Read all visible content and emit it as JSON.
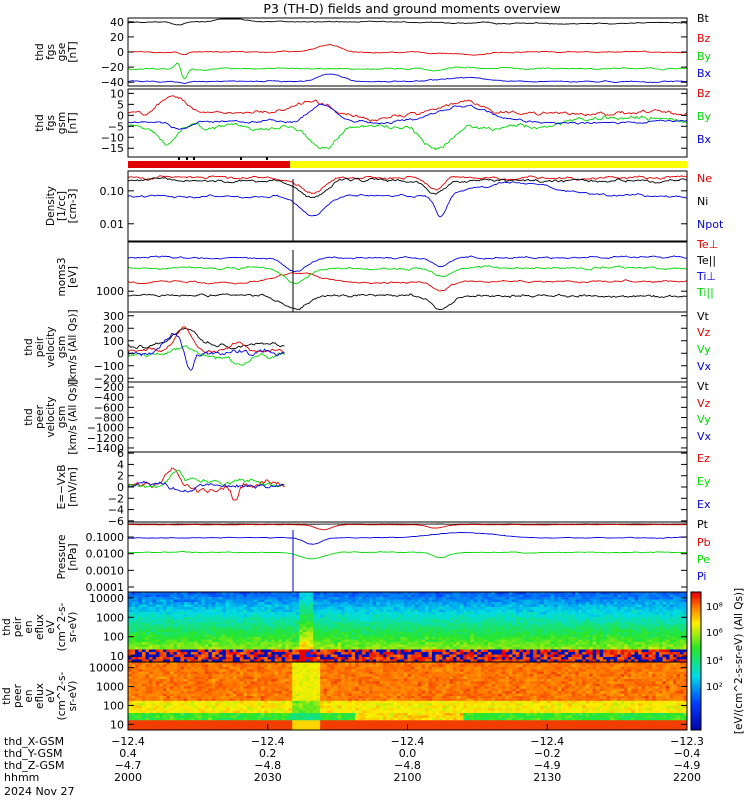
{
  "title": "P3 (TH-D) fields and ground moments overview",
  "colors": {
    "black": "#000000",
    "red": "#e00000",
    "green": "#00d800",
    "blue": "#0000e0",
    "yellow": "#ffff00"
  },
  "chart_data": [
    {
      "id": "fgs",
      "type": "line",
      "ylabel": [
        "thd",
        "fgs",
        "gse",
        "[nT]"
      ],
      "ylim": [
        -45,
        45
      ],
      "ticks": [
        {
          "v": 40,
          "t": "40"
        },
        {
          "v": 20,
          "t": "20"
        },
        {
          "v": 0,
          "t": "0"
        },
        {
          "v": -20,
          "t": "−20"
        },
        {
          "v": -40,
          "t": "−40"
        }
      ],
      "series": [
        {
          "name": "Bt",
          "color": "black",
          "base": 39,
          "amp": 1.5,
          "events": [
            [
              0.09,
              -4,
              0.015
            ],
            [
              0.18,
              5,
              0.04
            ],
            [
              0.3,
              1,
              0.2
            ],
            [
              0.72,
              -1,
              0.2
            ]
          ]
        },
        {
          "name": "Bz",
          "color": "red",
          "base": 0,
          "amp": 1.5,
          "events": [
            [
              0.1,
              -3,
              0.01
            ],
            [
              0.36,
              10,
              0.03
            ],
            [
              0.55,
              -2,
              0.05
            ],
            [
              0.62,
              -4,
              0.03
            ]
          ]
        },
        {
          "name": "By",
          "color": "green",
          "base": -22,
          "amp": 2.0,
          "events": [
            [
              0.09,
              10,
              0.008
            ],
            [
              0.1,
              -15,
              0.008
            ],
            [
              0.55,
              -3,
              0.02
            ],
            [
              0.6,
              3,
              0.03
            ]
          ]
        },
        {
          "name": "Bx",
          "color": "blue",
          "base": -39,
          "amp": 1.5,
          "events": [
            [
              0.1,
              -3,
              0.01
            ],
            [
              0.36,
              10,
              0.03
            ],
            [
              0.6,
              5,
              0.05
            ]
          ]
        }
      ]
    },
    {
      "id": "fgs_gsm",
      "type": "line",
      "ylabel": [
        "thd",
        "fgs",
        "gsm",
        "[nT]"
      ],
      "ylim": [
        -19,
        12
      ],
      "ticks": [
        {
          "v": 10,
          "t": "10"
        },
        {
          "v": 5,
          "t": "5"
        },
        {
          "v": 0,
          "t": "0"
        },
        {
          "v": -5,
          "t": "−5"
        },
        {
          "v": -10,
          "t": "−10"
        },
        {
          "v": -15,
          "t": "−15"
        }
      ],
      "series": [
        {
          "name": "Bz",
          "color": "red",
          "base": 1,
          "amp": 1.6,
          "events": [
            [
              0.08,
              8,
              0.03
            ],
            [
              0.33,
              6,
              0.04
            ],
            [
              0.45,
              -3,
              0.05
            ],
            [
              0.6,
              5,
              0.05
            ]
          ]
        },
        {
          "name": "By",
          "color": "green",
          "base": -5,
          "amp": 2.0,
          "events": [
            [
              0.07,
              -8,
              0.02
            ],
            [
              0.35,
              -10,
              0.03
            ],
            [
              0.55,
              -11,
              0.03
            ],
            [
              0.9,
              4,
              0.1
            ]
          ]
        },
        {
          "name": "Bx",
          "color": "blue",
          "base": -3,
          "amp": 1.2,
          "events": [
            [
              0.1,
              -3,
              0.02
            ],
            [
              0.35,
              8,
              0.03
            ],
            [
              0.6,
              7,
              0.06
            ]
          ]
        }
      ]
    },
    {
      "id": "density",
      "type": "line",
      "log": true,
      "ylabel": [
        "Density",
        "[1/cc]",
        "[cm-3]"
      ],
      "ylim": [
        0.003,
        0.4
      ],
      "ticks": [
        {
          "v": 0.1,
          "t": "0.10"
        },
        {
          "v": 0.01,
          "t": "0.01"
        }
      ],
      "series": [
        {
          "name": "Ne",
          "color": "red",
          "base": 0.25,
          "amp": 0.08,
          "events": [
            [
              0.33,
              -0.4,
              0.03
            ],
            [
              0.55,
              -0.4,
              0.02
            ]
          ]
        },
        {
          "name": "Ni",
          "color": "black",
          "base": 0.2,
          "amp": 0.09,
          "events": [
            [
              0.33,
              -0.5,
              0.03
            ],
            [
              0.55,
              -0.4,
              0.02
            ]
          ]
        },
        {
          "name": "Npot",
          "color": "blue",
          "base": 0.07,
          "amp": 0.06,
          "events": [
            [
              0.33,
              -0.6,
              0.03
            ],
            [
              0.56,
              -0.7,
              0.015
            ],
            [
              0.7,
              0.4,
              0.1
            ]
          ]
        }
      ]
    },
    {
      "id": "temp",
      "type": "line",
      "log": true,
      "ylabel": [
        "moms3",
        "[eV]"
      ],
      "ylim": [
        350,
        12000
      ],
      "ticks": [
        {
          "v": 1000,
          "t": "1000"
        }
      ],
      "series": [
        {
          "name": "Te⊥",
          "color": "red",
          "base": 1600,
          "amp": 0.04,
          "events": [
            [
              0.3,
              0.2,
              0.05
            ],
            [
              0.56,
              -0.2,
              0.02
            ]
          ]
        },
        {
          "name": "Te||",
          "color": "black",
          "base": 800,
          "amp": 0.06,
          "events": [
            [
              0.3,
              -0.3,
              0.03
            ],
            [
              0.56,
              -0.3,
              0.02
            ]
          ]
        },
        {
          "name": "Ti⊥",
          "color": "blue",
          "base": 5500,
          "amp": 0.04,
          "events": [
            [
              0.3,
              -0.3,
              0.03
            ],
            [
              0.56,
              -0.2,
              0.02
            ]
          ]
        },
        {
          "name": "Ti||",
          "color": "green",
          "base": 3200,
          "amp": 0.05,
          "events": [
            [
              0.3,
              -0.3,
              0.03
            ],
            [
              0.56,
              -0.2,
              0.02
            ]
          ]
        }
      ]
    },
    {
      "id": "peir_vel",
      "type": "line",
      "ylabel": [
        "thd",
        "peir",
        "velocity",
        "gsm",
        "[km/s (All Qs)]"
      ],
      "ylim": [
        -230,
        330
      ],
      "xmax": 0.28,
      "ticks": [
        {
          "v": 300,
          "t": "300"
        },
        {
          "v": 200,
          "t": "200"
        },
        {
          "v": 100,
          "t": "100"
        },
        {
          "v": 0,
          "t": "0"
        },
        {
          "v": -100,
          "t": "−100"
        },
        {
          "v": -200,
          "t": "−200"
        }
      ],
      "series": [
        {
          "name": "Vt",
          "color": "black",
          "base": 70,
          "amp": 30,
          "events": [
            [
              0.1,
              130,
              0.03
            ]
          ]
        },
        {
          "name": "Vz",
          "color": "red",
          "base": 20,
          "amp": 30,
          "events": [
            [
              0.1,
              180,
              0.02
            ],
            [
              0.2,
              40,
              0.02
            ]
          ]
        },
        {
          "name": "Vy",
          "color": "green",
          "base": -20,
          "amp": 35,
          "events": [
            [
              0.1,
              80,
              0.02
            ],
            [
              0.2,
              -60,
              0.02
            ]
          ]
        },
        {
          "name": "Vx",
          "color": "blue",
          "base": 0,
          "amp": 40,
          "events": [
            [
              0.08,
              160,
              0.02
            ],
            [
              0.11,
              -150,
              0.01
            ]
          ]
        }
      ]
    },
    {
      "id": "peer_vel",
      "type": "line",
      "empty": true,
      "ylabel": [
        "thd",
        "peer",
        "velocity",
        "gsm",
        "[km/s (All Qs)]"
      ],
      "ylim": [
        -1480,
        -100
      ],
      "ticks": [
        {
          "v": -200,
          "t": "−200"
        },
        {
          "v": -400,
          "t": "−400"
        },
        {
          "v": -600,
          "t": "−600"
        },
        {
          "v": -800,
          "t": "−800"
        },
        {
          "v": -1000,
          "t": "−1000"
        },
        {
          "v": -1200,
          "t": "−1200"
        },
        {
          "v": -1400,
          "t": "−1400"
        }
      ],
      "series": [
        {
          "name": "Vt",
          "color": "black"
        },
        {
          "name": "Vz",
          "color": "red"
        },
        {
          "name": "Vy",
          "color": "green"
        },
        {
          "name": "Vx",
          "color": "blue"
        }
      ]
    },
    {
      "id": "efield",
      "type": "line",
      "ylabel": [
        "E=−VxB",
        "[mV/m]"
      ],
      "ylim": [
        -6.2,
        6.2
      ],
      "xmax": 0.28,
      "ticks": [
        {
          "v": 6,
          "t": "6"
        },
        {
          "v": 4,
          "t": "4"
        },
        {
          "v": 2,
          "t": "2"
        },
        {
          "v": 0,
          "t": "0"
        },
        {
          "v": -2,
          "t": "−2"
        },
        {
          "v": -4,
          "t": "−4"
        },
        {
          "v": -6,
          "t": "−6"
        }
      ],
      "series": [
        {
          "name": "Ez",
          "color": "red",
          "base": 0.3,
          "amp": 1.3,
          "events": [
            [
              0.08,
              3,
              0.02
            ],
            [
              0.19,
              -3,
              0.01
            ]
          ]
        },
        {
          "name": "Ey",
          "color": "green",
          "base": 0.5,
          "amp": 1.0,
          "events": [
            [
              0.09,
              2.5,
              0.02
            ]
          ]
        },
        {
          "name": "Ex",
          "color": "blue",
          "base": 0.2,
          "amp": 0.8,
          "events": [
            [
              0.1,
              -1.5,
              0.02
            ]
          ]
        }
      ]
    },
    {
      "id": "pressure",
      "type": "line",
      "log": true,
      "ylabel": [
        "Pressure",
        "[nPa]"
      ],
      "ylim": [
        5e-05,
        0.8
      ],
      "ticks": [
        {
          "v": 0.1,
          "t": "0.1000"
        },
        {
          "v": 0.01,
          "t": "0.0100"
        },
        {
          "v": 0.001,
          "t": "0.0010"
        },
        {
          "v": 0.0001,
          "t": "0.0001"
        }
      ],
      "series": [
        {
          "name": "Pt",
          "color": "black",
          "base": 0.6,
          "amp": 0.01,
          "events": []
        },
        {
          "name": "Pb",
          "color": "red",
          "base": 0.55,
          "amp": 0.015,
          "events": [
            [
              0.35,
              -0.3,
              0.02
            ],
            [
              0.55,
              -0.2,
              0.02
            ]
          ]
        },
        {
          "name": "Pe",
          "color": "green",
          "base": 0.012,
          "amp": 0.05,
          "events": [
            [
              0.33,
              -0.4,
              0.03
            ],
            [
              0.56,
              -0.3,
              0.02
            ]
          ]
        },
        {
          "name": "Pi",
          "color": "blue",
          "base": 0.09,
          "amp": 0.04,
          "events": [
            [
              0.33,
              -0.4,
              0.02
            ],
            [
              0.6,
              0.3,
              0.08
            ]
          ]
        }
      ]
    },
    {
      "id": "peir_spec",
      "type": "heatmap",
      "ylabel": [
        "thd",
        "peir",
        "en",
        "eflux",
        "eV",
        "(cm^2-s-",
        "sr-eV)"
      ],
      "ylim": [
        5,
        20000
      ],
      "log": true,
      "ticks": [
        {
          "v": 10000,
          "t": "10000"
        },
        {
          "v": 1000,
          "t": "1000"
        },
        {
          "v": 100,
          "t": "100"
        },
        {
          "v": 10,
          "t": "10"
        }
      ]
    },
    {
      "id": "peer_spec",
      "type": "heatmap",
      "ylabel": [
        "thd",
        "peer",
        "en",
        "eflux",
        "eV",
        "(cm^2-s-",
        "sr-eV)"
      ],
      "ylim": [
        5,
        20000
      ],
      "log": true,
      "ticks": [
        {
          "v": 10000,
          "t": "10000"
        },
        {
          "v": 1000,
          "t": "1000"
        },
        {
          "v": 100,
          "t": "100"
        },
        {
          "v": 10,
          "t": "10"
        }
      ]
    }
  ],
  "colorbar": {
    "ticks": [
      "10⁸",
      "10⁶",
      "10⁴",
      "10²"
    ],
    "label": "[eV/(cm^2-s-sr-eV) (All Qs)]"
  },
  "mode_bar": {
    "segments": [
      {
        "from": 0,
        "to": 0.29,
        "color": "red"
      },
      {
        "from": 0.29,
        "to": 1,
        "color": "yellow"
      }
    ]
  },
  "x_axis": {
    "ticks": [
      0,
      0.25,
      0.5,
      0.75,
      1
    ],
    "rows": [
      {
        "label": "thd_X-GSM",
        "values": [
          "−12.4",
          "−12.4",
          "−12.4",
          "−12.4",
          "−12.3"
        ]
      },
      {
        "label": "thd_Y-GSM",
        "values": [
          "0.4",
          "0.2",
          "0.0",
          "−0.2",
          "−0.4"
        ]
      },
      {
        "label": "thd_Z-GSM",
        "values": [
          "−4.7",
          "−4.8",
          "−4.8",
          "−4.9",
          "−4.9"
        ]
      },
      {
        "label": "hhmm",
        "values": [
          "2000",
          "2030",
          "2100",
          "2130",
          "2200"
        ]
      }
    ],
    "date": "2024 Nov 27"
  }
}
